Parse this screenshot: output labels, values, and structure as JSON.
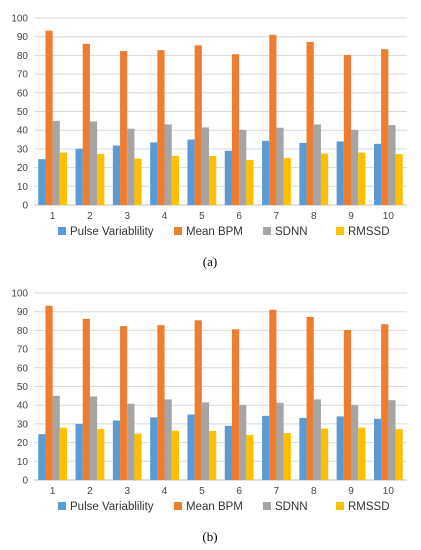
{
  "chart_data": [
    {
      "type": "bar",
      "caption": "(a)",
      "categories": [
        "1",
        "2",
        "3",
        "4",
        "5",
        "6",
        "7",
        "8",
        "9",
        "10"
      ],
      "series": [
        {
          "name": "Pulse Variablility",
          "color": "#5b9bd5",
          "values": [
            24.5,
            30.0,
            31.8,
            33.5,
            35.0,
            29.0,
            34.3,
            33.2,
            34.0,
            32.7
          ]
        },
        {
          "name": "Mean BPM",
          "color": "#ed7d31",
          "values": [
            93.2,
            86.2,
            82.3,
            82.8,
            85.4,
            80.6,
            91.0,
            87.2,
            80.2,
            83.3
          ]
        },
        {
          "name": "SDNN",
          "color": "#a5a5a5",
          "values": [
            45.0,
            44.7,
            40.8,
            43.1,
            41.5,
            40.2,
            41.3,
            43.1,
            40.2,
            42.7
          ]
        },
        {
          "name": "RMSSD",
          "color": "#ffc000",
          "values": [
            28.0,
            27.3,
            24.8,
            26.3,
            26.2,
            24.1,
            25.1,
            27.5,
            28.0,
            27.2
          ]
        }
      ],
      "y_ticks": [
        "0",
        "10",
        "20",
        "30",
        "40",
        "50",
        "60",
        "70",
        "80",
        "90",
        "100"
      ],
      "ylim": [
        0,
        100
      ],
      "grid": true,
      "legend": "bottom"
    },
    {
      "type": "bar",
      "caption": "(b)",
      "categories": [
        "1",
        "2",
        "3",
        "4",
        "5",
        "6",
        "7",
        "8",
        "9",
        "10"
      ],
      "series": [
        {
          "name": "Pulse Variablility",
          "color": "#5b9bd5",
          "values": [
            24.5,
            30.0,
            31.8,
            33.5,
            35.0,
            29.0,
            34.3,
            33.2,
            34.0,
            32.7
          ]
        },
        {
          "name": "Mean BPM",
          "color": "#ed7d31",
          "values": [
            93.2,
            86.2,
            82.3,
            82.8,
            85.4,
            80.6,
            91.0,
            87.2,
            80.2,
            83.3
          ]
        },
        {
          "name": "SDNN",
          "color": "#a5a5a5",
          "values": [
            45.0,
            44.7,
            40.8,
            43.1,
            41.5,
            40.2,
            41.3,
            43.1,
            40.2,
            42.7
          ]
        },
        {
          "name": "RMSSD",
          "color": "#ffc000",
          "values": [
            28.0,
            27.3,
            24.8,
            26.3,
            26.2,
            24.1,
            25.1,
            27.5,
            28.0,
            27.2
          ]
        }
      ],
      "y_ticks": [
        "0",
        "10",
        "20",
        "30",
        "40",
        "50",
        "60",
        "70",
        "80",
        "90",
        "100"
      ],
      "ylim": [
        0,
        100
      ],
      "grid": true,
      "legend": "bottom"
    }
  ]
}
